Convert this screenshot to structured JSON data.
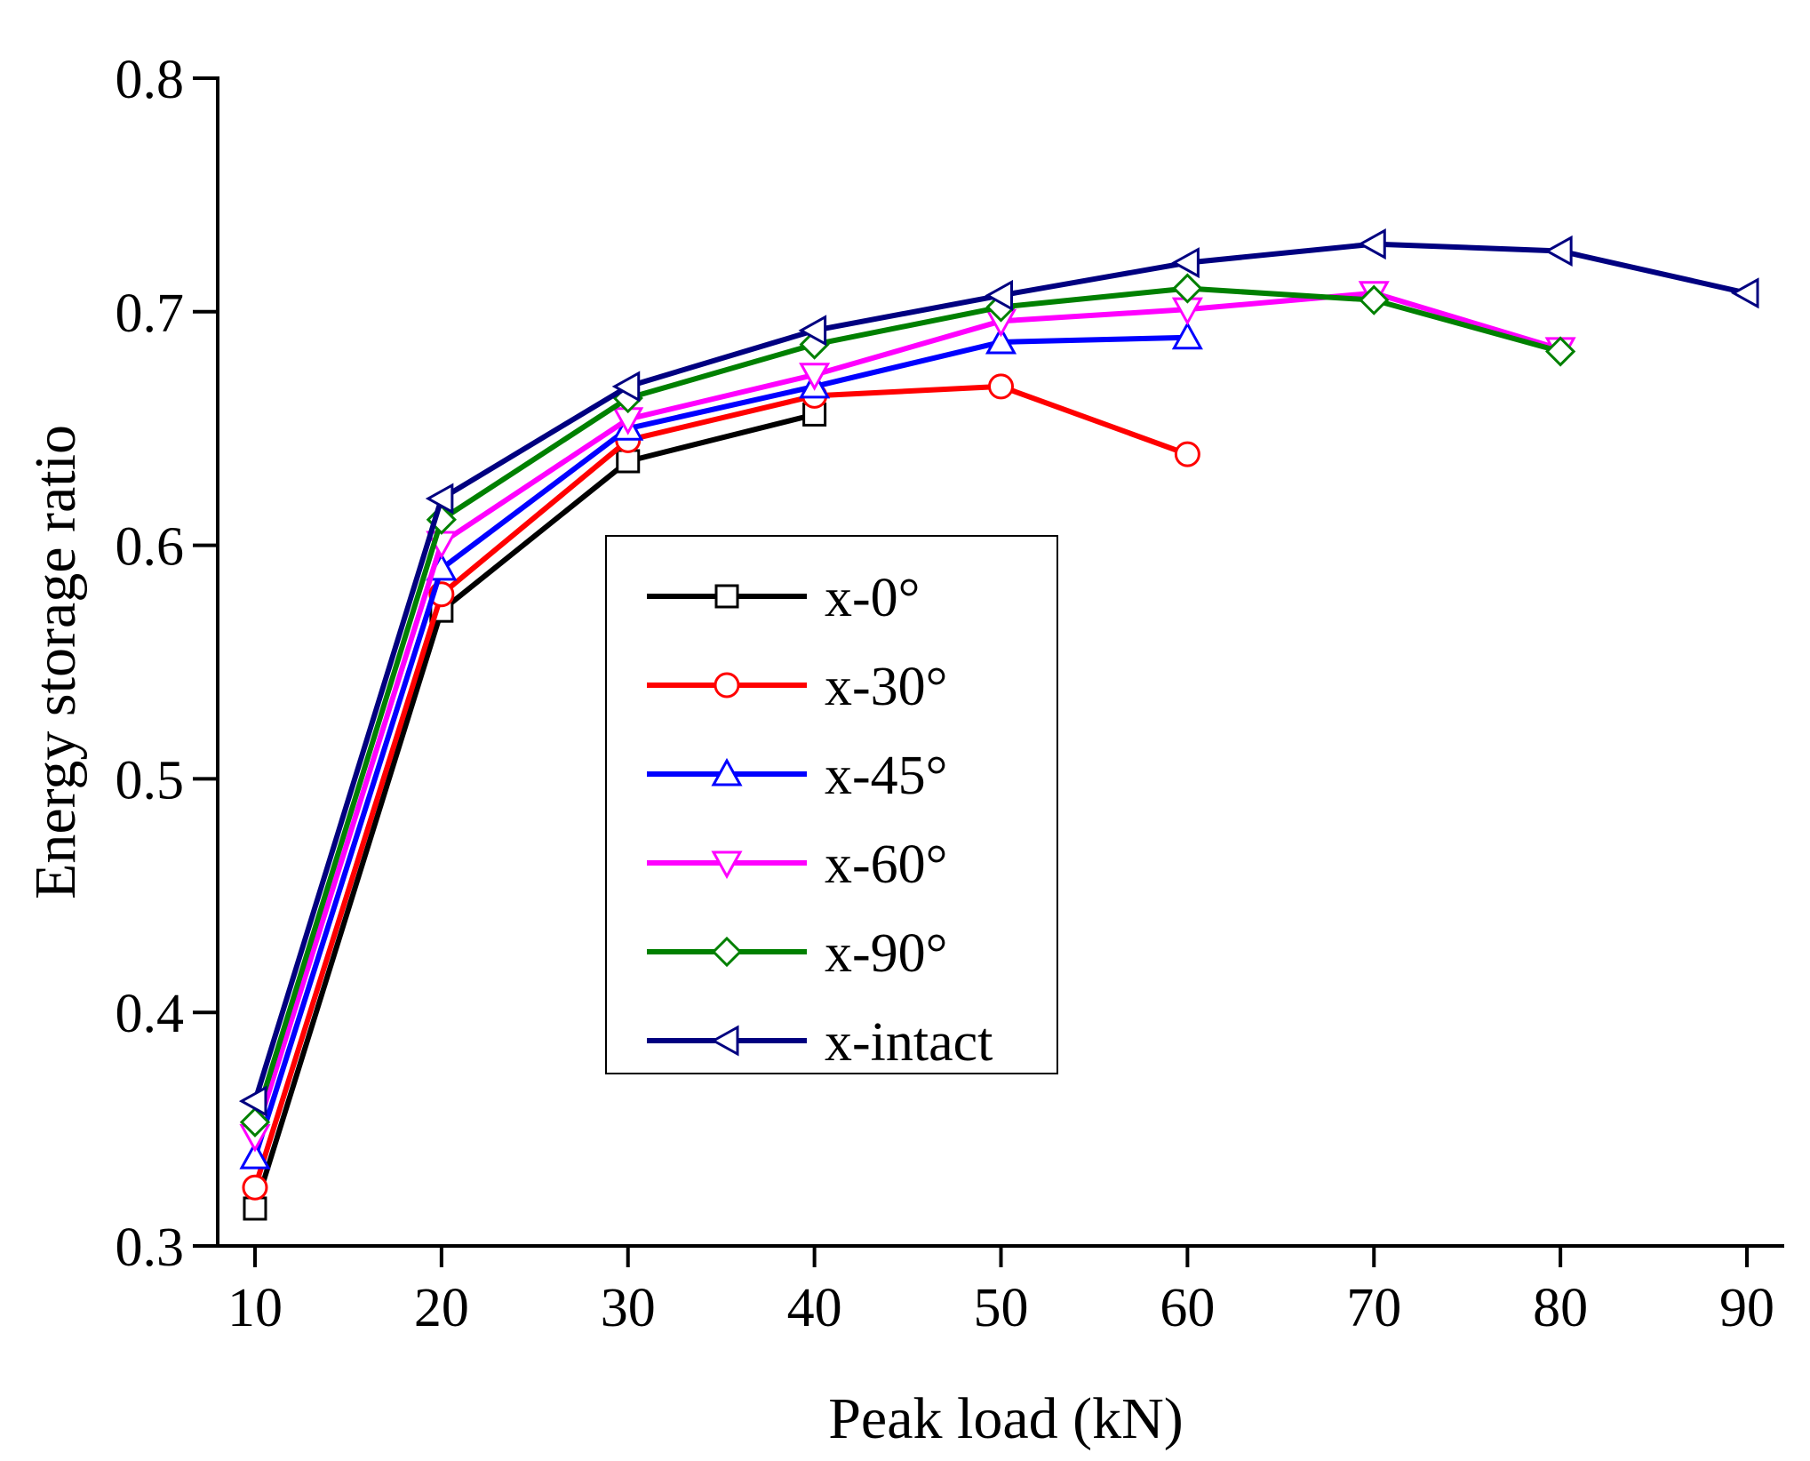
{
  "chart_data": {
    "type": "line",
    "title": "",
    "xlabel": "Peak load (kN)",
    "ylabel": "Energy storage ratio",
    "xlim": [
      8,
      92
    ],
    "ylim": [
      0.3,
      0.8
    ],
    "x_ticks": [
      10,
      20,
      30,
      40,
      50,
      60,
      70,
      80,
      90
    ],
    "x_tick_labels": [
      "10",
      "20",
      "30",
      "40",
      "50",
      "60",
      "70",
      "80",
      "90"
    ],
    "y_ticks": [
      0.3,
      0.4,
      0.5,
      0.6,
      0.7,
      0.8
    ],
    "y_tick_labels": [
      "0.3",
      "0.4",
      "0.5",
      "0.6",
      "0.7",
      "0.8"
    ],
    "grid": false,
    "legend_position": "center",
    "series": [
      {
        "name": "x-0°",
        "color": "#000000",
        "marker": "square",
        "x": [
          10,
          20,
          30,
          40
        ],
        "y": [
          0.316,
          0.572,
          0.636,
          0.656
        ]
      },
      {
        "name": "x-30°",
        "color": "#ff0000",
        "marker": "circle",
        "x": [
          10,
          20,
          30,
          40,
          50,
          60
        ],
        "y": [
          0.325,
          0.579,
          0.645,
          0.664,
          0.668,
          0.639
        ]
      },
      {
        "name": "x-45°",
        "color": "#0000ff",
        "marker": "triangle-up",
        "x": [
          10,
          20,
          30,
          40,
          50,
          60
        ],
        "y": [
          0.338,
          0.59,
          0.65,
          0.668,
          0.687,
          0.689
        ]
      },
      {
        "name": "x-60°",
        "color": "#ff00ff",
        "marker": "triangle-down",
        "x": [
          10,
          20,
          30,
          40,
          50,
          60,
          70,
          80
        ],
        "y": [
          0.347,
          0.601,
          0.654,
          0.673,
          0.696,
          0.701,
          0.708,
          0.684
        ]
      },
      {
        "name": "x-90°",
        "color": "#008000",
        "marker": "diamond",
        "x": [
          10,
          20,
          30,
          40,
          50,
          60,
          70,
          80
        ],
        "y": [
          0.353,
          0.611,
          0.663,
          0.686,
          0.702,
          0.71,
          0.705,
          0.683
        ]
      },
      {
        "name": "x-intact",
        "color": "#000080",
        "marker": "triangle-left",
        "x": [
          10,
          20,
          30,
          40,
          50,
          60,
          70,
          80,
          90
        ],
        "y": [
          0.362,
          0.62,
          0.668,
          0.692,
          0.707,
          0.721,
          0.729,
          0.726,
          0.708
        ]
      }
    ]
  }
}
